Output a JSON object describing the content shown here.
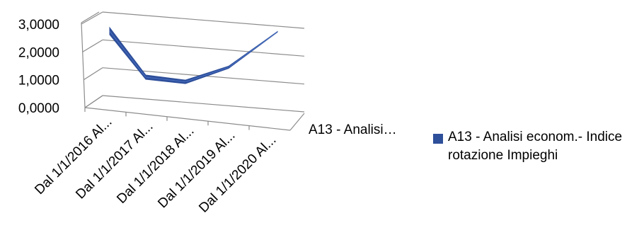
{
  "chart_data": {
    "type": "line",
    "style": "3d-ribbon",
    "y_ticks": [
      "3,0000",
      "2,0000",
      "1,0000",
      "0,0000"
    ],
    "ylim": [
      0,
      3
    ],
    "categories": [
      "Dal 1/1/2016 Al...",
      "Dal 1/1/2017 Al...",
      "Dal 1/1/2018 Al...",
      "Dal 1/1/2019 Al...",
      "Dal 1/1/2020 Al..."
    ],
    "depth_axis_label": "A13 - Analisi…",
    "series": [
      {
        "name": "A13 - Analisi econom.- Indice rotazione Impieghi",
        "values": [
          2.55,
          1.0,
          0.92,
          1.25,
          2.5
        ],
        "color": "#2e4f9a"
      }
    ],
    "grid": true,
    "legend_position": "right"
  }
}
